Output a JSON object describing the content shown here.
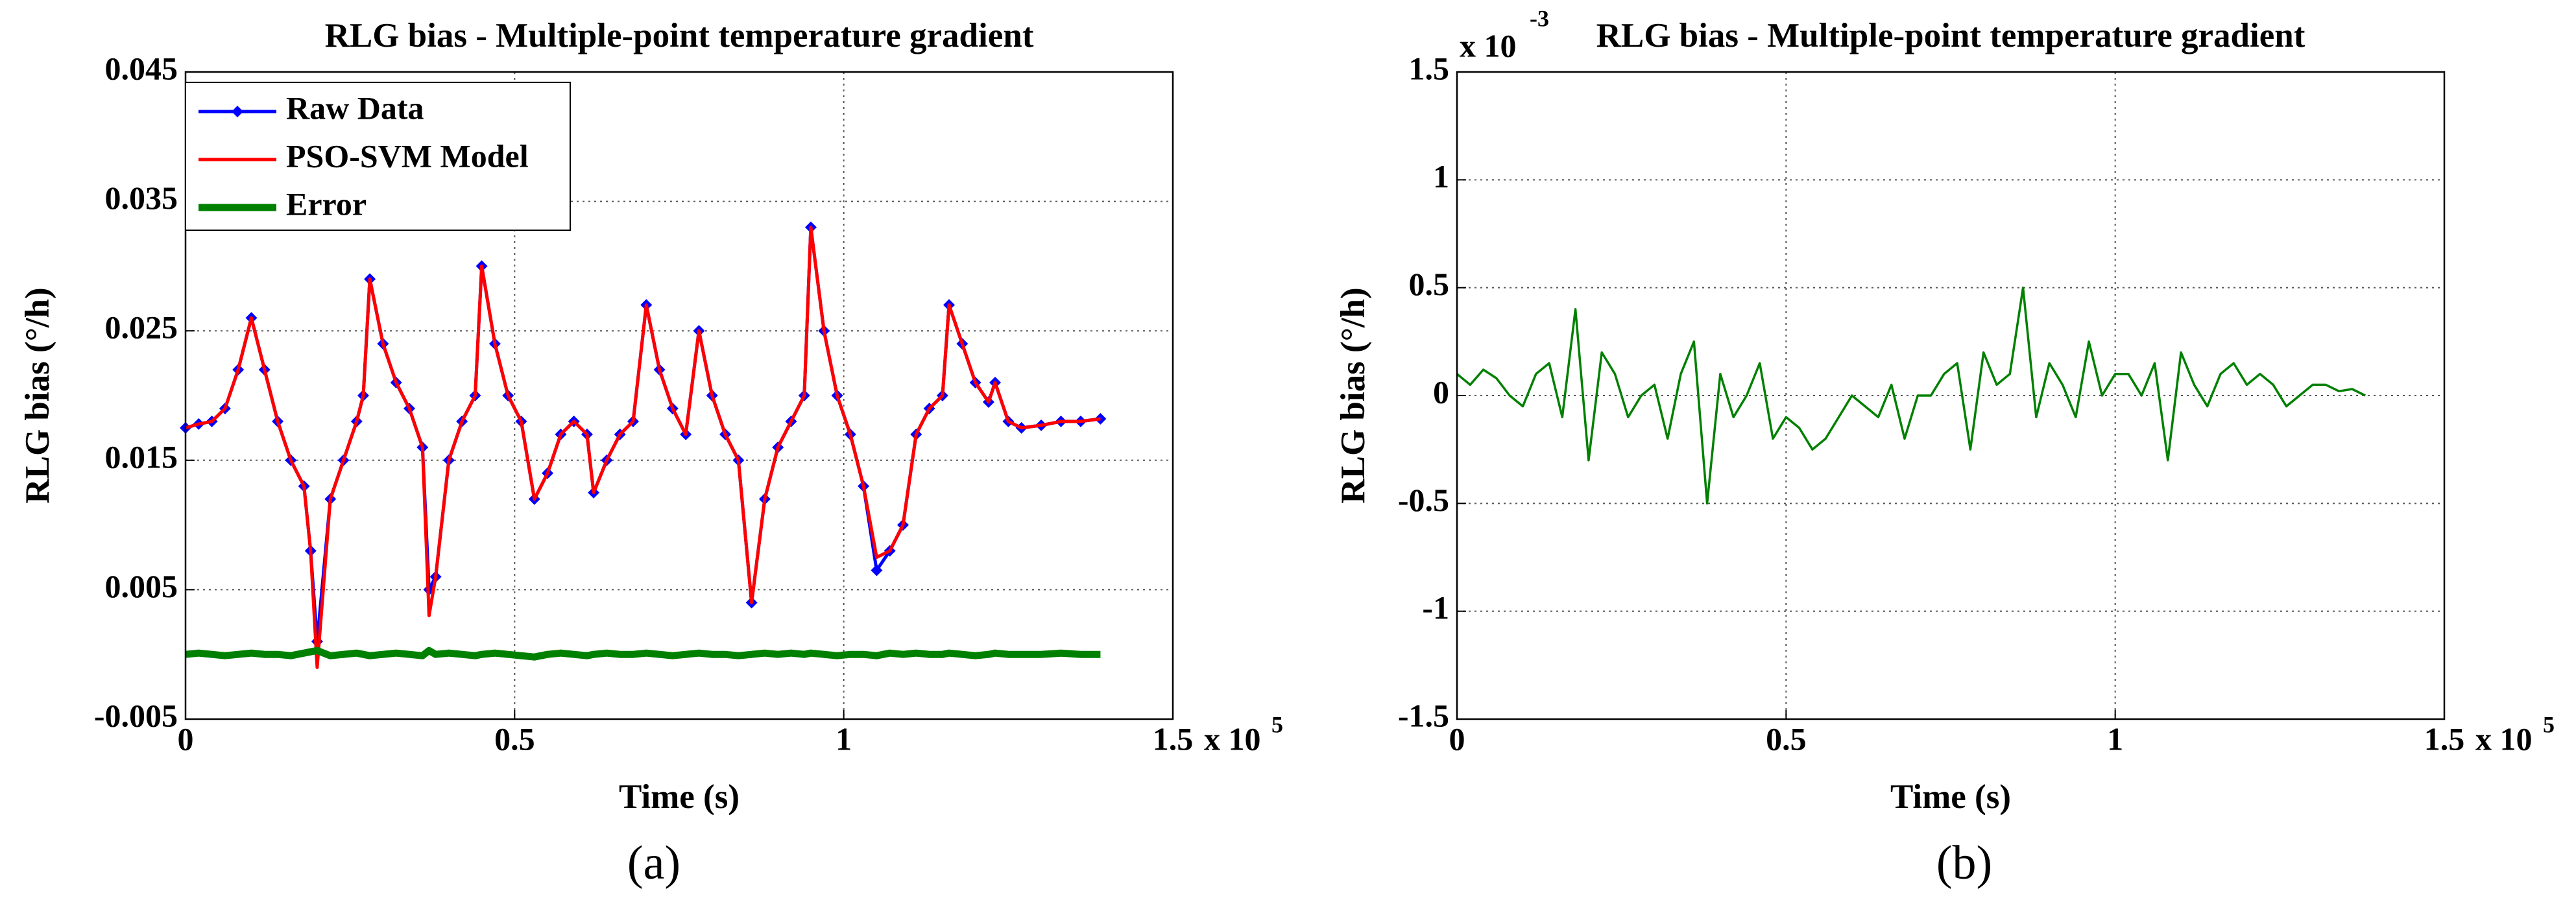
{
  "chart_data": [
    {
      "type": "line",
      "title": "RLG bias - Multiple-point temperature gradient",
      "x_label": "Time (s)",
      "y_label": "RLG bias (°/h)",
      "caption": "(a)",
      "x_multiplier": {
        "base": "x 10",
        "exponent": "5"
      },
      "xlim": [
        0,
        1.5
      ],
      "xticks": [
        0,
        0.5,
        1,
        1.5
      ],
      "ylim": [
        -0.005,
        0.045
      ],
      "yticks": [
        -0.005,
        0.005,
        0.015,
        0.025,
        0.035,
        0.045
      ],
      "grid": true,
      "legend": "upper left",
      "x": [
        0,
        0.02,
        0.04,
        0.06,
        0.08,
        0.1,
        0.12,
        0.14,
        0.16,
        0.18,
        0.19,
        0.2,
        0.22,
        0.24,
        0.26,
        0.27,
        0.28,
        0.3,
        0.32,
        0.34,
        0.36,
        0.37,
        0.38,
        0.4,
        0.42,
        0.44,
        0.45,
        0.47,
        0.49,
        0.51,
        0.53,
        0.55,
        0.57,
        0.59,
        0.61,
        0.62,
        0.64,
        0.66,
        0.68,
        0.7,
        0.72,
        0.74,
        0.76,
        0.78,
        0.8,
        0.82,
        0.84,
        0.86,
        0.88,
        0.9,
        0.92,
        0.94,
        0.95,
        0.97,
        0.99,
        1.01,
        1.03,
        1.05,
        1.07,
        1.09,
        1.11,
        1.13,
        1.15,
        1.16,
        1.18,
        1.2,
        1.22,
        1.23,
        1.25,
        1.27,
        1.3,
        1.33,
        1.36,
        1.39
      ],
      "series": [
        {
          "name": "Raw Data",
          "color": "#0000ff",
          "marker": "diamond",
          "values": [
            0.0175,
            0.0178,
            0.018,
            0.019,
            0.022,
            0.026,
            0.022,
            0.018,
            0.015,
            0.013,
            0.008,
            0.001,
            0.012,
            0.015,
            0.018,
            0.02,
            0.029,
            0.024,
            0.021,
            0.019,
            0.016,
            0.005,
            0.006,
            0.015,
            0.018,
            0.02,
            0.03,
            0.024,
            0.02,
            0.018,
            0.012,
            0.014,
            0.017,
            0.018,
            0.017,
            0.0125,
            0.015,
            0.017,
            0.018,
            0.027,
            0.022,
            0.019,
            0.017,
            0.025,
            0.02,
            0.017,
            0.015,
            0.004,
            0.012,
            0.016,
            0.018,
            0.02,
            0.033,
            0.025,
            0.02,
            0.017,
            0.013,
            0.0065,
            0.008,
            0.01,
            0.017,
            0.019,
            0.02,
            0.027,
            0.024,
            0.021,
            0.0195,
            0.021,
            0.018,
            0.0175,
            0.0177,
            0.018,
            0.018,
            0.0182
          ]
        },
        {
          "name": "PSO-SVM Model",
          "color": "#ff0000",
          "values": [
            0.0175,
            0.0178,
            0.018,
            0.019,
            0.022,
            0.026,
            0.022,
            0.018,
            0.015,
            0.013,
            0.008,
            -0.001,
            0.012,
            0.015,
            0.018,
            0.02,
            0.029,
            0.024,
            0.021,
            0.019,
            0.016,
            0.003,
            0.006,
            0.015,
            0.018,
            0.02,
            0.03,
            0.024,
            0.02,
            0.018,
            0.012,
            0.014,
            0.017,
            0.018,
            0.017,
            0.0125,
            0.015,
            0.017,
            0.018,
            0.027,
            0.022,
            0.019,
            0.017,
            0.025,
            0.02,
            0.017,
            0.015,
            0.004,
            0.012,
            0.016,
            0.018,
            0.02,
            0.033,
            0.025,
            0.02,
            0.017,
            0.013,
            0.0075,
            0.008,
            0.01,
            0.017,
            0.019,
            0.02,
            0.027,
            0.024,
            0.021,
            0.0195,
            0.021,
            0.018,
            0.0175,
            0.0177,
            0.018,
            0.018,
            0.0182
          ]
        },
        {
          "name": "Error",
          "color": "#008000",
          "values": [
            0,
            0.0001,
            0,
            -0.0001,
            0,
            0.0001,
            0,
            0,
            -0.0001,
            0.0001,
            0.0002,
            0.0003,
            -0.0001,
            0,
            0.0001,
            0,
            -0.0001,
            0,
            0.0001,
            0,
            -0.0001,
            0.0003,
            0,
            0.0001,
            0,
            -0.0001,
            0,
            0.0001,
            0,
            -0.0001,
            -0.0002,
            0,
            0.0001,
            0,
            -0.0001,
            0,
            0.0001,
            0,
            0,
            0.0001,
            0,
            -0.0001,
            0,
            0.0001,
            0,
            0,
            -0.0001,
            0,
            0.0001,
            0,
            0.0001,
            0,
            0.0001,
            0,
            -0.0001,
            0,
            0,
            -0.0001,
            0.0001,
            0,
            0.0001,
            0,
            0,
            0.0001,
            0,
            -0.0001,
            0,
            0.0001,
            0,
            0,
            0,
            0.0001,
            0,
            0
          ]
        }
      ]
    },
    {
      "type": "line",
      "title": "RLG bias - Multiple-point temperature gradient",
      "x_label": "Time (s)",
      "y_label": "RLG bias (°/h)",
      "caption": "(b)",
      "x_multiplier": {
        "base": "x 10",
        "exponent": "5"
      },
      "y_multiplier": {
        "base": "x 10",
        "exponent": "-3"
      },
      "xlim": [
        0,
        1.5
      ],
      "xticks": [
        0,
        0.5,
        1,
        1.5
      ],
      "ylim": [
        -1.5,
        1.5
      ],
      "yticks": [
        -1.5,
        -1,
        -0.5,
        0,
        0.5,
        1,
        1.5
      ],
      "grid": true,
      "x": [
        0,
        0.02,
        0.04,
        0.06,
        0.08,
        0.1,
        0.12,
        0.14,
        0.16,
        0.18,
        0.2,
        0.22,
        0.24,
        0.26,
        0.28,
        0.3,
        0.32,
        0.34,
        0.36,
        0.38,
        0.4,
        0.42,
        0.44,
        0.46,
        0.48,
        0.5,
        0.52,
        0.54,
        0.56,
        0.58,
        0.6,
        0.62,
        0.64,
        0.66,
        0.68,
        0.7,
        0.72,
        0.74,
        0.76,
        0.78,
        0.8,
        0.82,
        0.84,
        0.86,
        0.88,
        0.9,
        0.92,
        0.94,
        0.96,
        0.98,
        1,
        1.02,
        1.04,
        1.06,
        1.08,
        1.1,
        1.12,
        1.14,
        1.16,
        1.18,
        1.2,
        1.22,
        1.24,
        1.26,
        1.28,
        1.3,
        1.32,
        1.34,
        1.36,
        1.38
      ],
      "series": [
        {
          "color": "#008000",
          "values": [
            0.1,
            0.05,
            0.12,
            0.08,
            0.0,
            -0.05,
            0.1,
            0.15,
            -0.1,
            0.4,
            -0.3,
            0.2,
            0.1,
            -0.1,
            0.0,
            0.05,
            -0.2,
            0.1,
            0.25,
            -0.5,
            0.1,
            -0.1,
            0.0,
            0.15,
            -0.2,
            -0.1,
            -0.15,
            -0.25,
            -0.2,
            -0.1,
            0.0,
            -0.05,
            -0.1,
            0.05,
            -0.2,
            0.0,
            0.0,
            0.1,
            0.15,
            -0.25,
            0.2,
            0.05,
            0.1,
            0.5,
            -0.1,
            0.15,
            0.05,
            -0.1,
            0.25,
            0.0,
            0.1,
            0.1,
            0.0,
            0.15,
            -0.3,
            0.2,
            0.05,
            -0.05,
            0.1,
            0.15,
            0.05,
            0.1,
            0.05,
            -0.05,
            0.0,
            0.05,
            0.05,
            0.02,
            0.03,
            0.0
          ]
        }
      ]
    }
  ]
}
